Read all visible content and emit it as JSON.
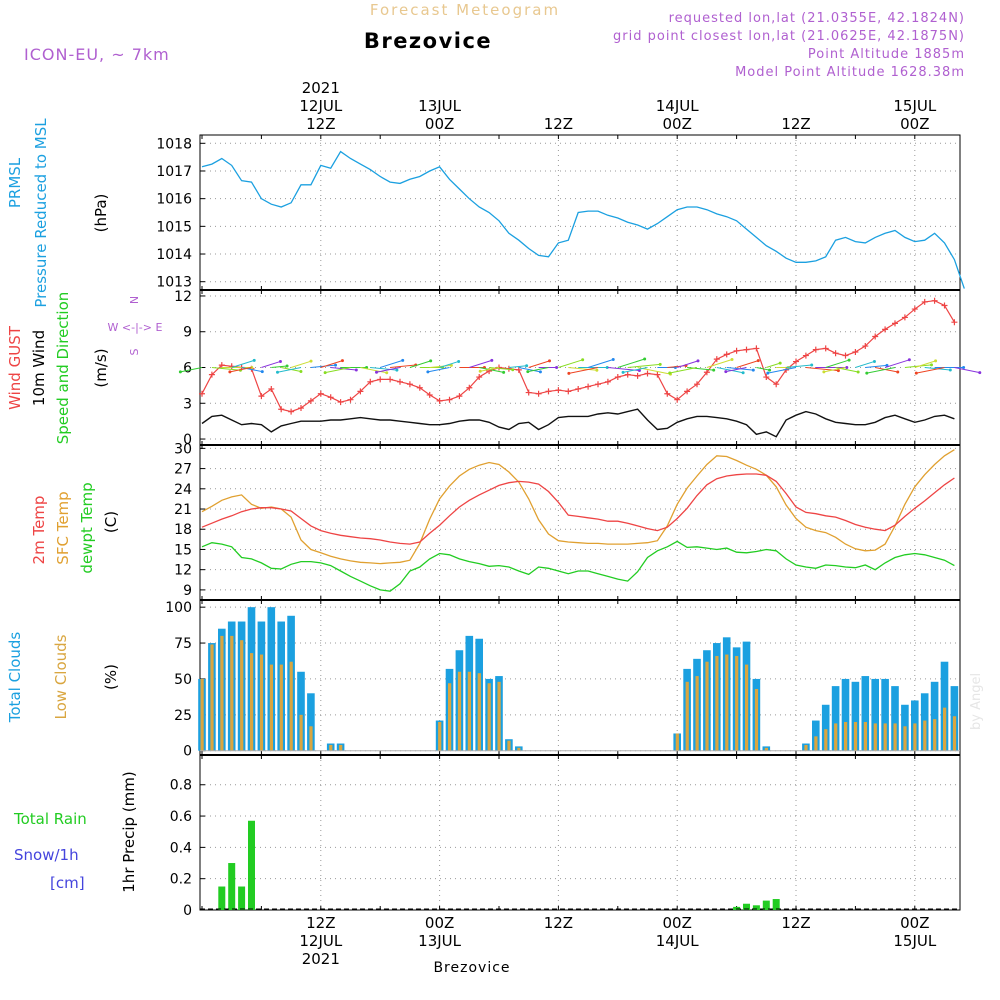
{
  "header": {
    "title_top": "Forecast Meteogram",
    "location": "Brezovice",
    "model": "ICON-EU, ~ 7km",
    "requested": "requested lon,lat (21.0355E, 42.1824N)",
    "gridpoint": "grid point closest lon,lat (21.0625E, 42.1875N)",
    "point_alt": "Point Altitude 1885m",
    "model_alt": "Model Point Altitude 1628.38m",
    "footer": "Brezovice",
    "watermark": "by Angel"
  },
  "colors": {
    "pressure": "#1ba0e0",
    "gust": "#ee4444",
    "wind": "#111111",
    "t2m": "#ee4444",
    "sfc": "#e0a030",
    "dew": "#22cc22",
    "total_clouds": "#1ba0e0",
    "low_clouds": "#d9a640",
    "rain": "#22cc22",
    "snow": "#4444dd",
    "meta": "#b060d0",
    "title_top": "#e8c890"
  },
  "time_axis": {
    "top_labels": [
      {
        "hour": 12,
        "lines": [
          "2021",
          "12JUL",
          "12Z"
        ]
      },
      {
        "hour": 24,
        "lines": [
          "13JUL",
          "00Z"
        ]
      },
      {
        "hour": 36,
        "lines": [
          "12Z"
        ]
      },
      {
        "hour": 48,
        "lines": [
          "14JUL",
          "00Z"
        ]
      },
      {
        "hour": 60,
        "lines": [
          "12Z"
        ]
      },
      {
        "hour": 72,
        "lines": [
          "15JUL",
          "00Z"
        ]
      }
    ],
    "bottom_labels": [
      {
        "hour": 12,
        "lines": [
          "12Z",
          "12JUL",
          "2021"
        ]
      },
      {
        "hour": 24,
        "lines": [
          "00Z",
          "13JUL"
        ]
      },
      {
        "hour": 36,
        "lines": [
          "12Z"
        ]
      },
      {
        "hour": 48,
        "lines": [
          "00Z",
          "14JUL"
        ]
      },
      {
        "hour": 60,
        "lines": [
          "12Z"
        ]
      },
      {
        "hour": 72,
        "lines": [
          "00Z",
          "15JUL"
        ]
      }
    ]
  },
  "chart_data": [
    {
      "type": "line",
      "panel": "pressure",
      "ylabel_lines": [
        "PRMSL",
        "Pressure Reduced to MSL"
      ],
      "unit": "(hPa)",
      "ylim": [
        1012.7,
        1018.3
      ],
      "yticks": [
        1013,
        1014,
        1015,
        1016,
        1017,
        1018
      ],
      "x_hours": "0..77 step 1",
      "values": [
        1017.15,
        1017.25,
        1017.45,
        1017.2,
        1016.65,
        1016.6,
        1016.0,
        1015.8,
        1015.7,
        1015.85,
        1016.5,
        1016.5,
        1017.2,
        1017.1,
        1017.7,
        1017.45,
        1017.25,
        1017.05,
        1016.8,
        1016.6,
        1016.55,
        1016.7,
        1016.8,
        1017.0,
        1017.15,
        1016.7,
        1016.35,
        1016.0,
        1015.7,
        1015.5,
        1015.2,
        1014.75,
        1014.5,
        1014.2,
        1013.95,
        1013.9,
        1014.4,
        1014.5,
        1015.5,
        1015.55,
        1015.55,
        1015.4,
        1015.3,
        1015.15,
        1015.05,
        1014.9,
        1015.1,
        1015.35,
        1015.6,
        1015.7,
        1015.7,
        1015.6,
        1015.45,
        1015.35,
        1015.2,
        1014.9,
        1014.6,
        1014.3,
        1014.1,
        1013.85,
        1013.7,
        1013.7,
        1013.75,
        1013.9,
        1014.5,
        1014.6,
        1014.45,
        1014.4,
        1014.6,
        1014.75,
        1014.85,
        1014.6,
        1014.45,
        1014.5,
        1014.75,
        1014.4,
        1013.8,
        1012.75
      ]
    },
    {
      "type": "line",
      "panel": "wind",
      "ylabel_gust": "Wind GUST",
      "ylabel_wind": "10m Wind",
      "ylabel_dir": "Speed and Direction",
      "unit": "(m/s)",
      "compass": [
        "N",
        "W <-|-> E",
        "S"
      ],
      "ylim": [
        -0.5,
        12.5
      ],
      "yticks": [
        0,
        3,
        6,
        9,
        12
      ],
      "gust": [
        3.8,
        5.4,
        6.2,
        6.1,
        6.0,
        5.9,
        3.6,
        4.2,
        2.5,
        2.3,
        2.6,
        3.2,
        3.8,
        3.5,
        3.1,
        3.3,
        4.0,
        4.8,
        5.0,
        5.0,
        4.8,
        4.6,
        4.3,
        3.7,
        3.2,
        3.3,
        3.6,
        4.3,
        5.2,
        5.7,
        6.0,
        5.9,
        5.8,
        3.9,
        3.8,
        4.0,
        4.1,
        4.0,
        4.2,
        4.4,
        4.6,
        4.8,
        5.2,
        5.4,
        5.3,
        5.5,
        5.4,
        3.8,
        3.3,
        4.0,
        4.6,
        5.6,
        6.7,
        7.1,
        7.4,
        7.5,
        7.6,
        5.2,
        4.6,
        5.8,
        6.5,
        7.0,
        7.5,
        7.6,
        7.2,
        7.0,
        7.3,
        7.8,
        8.6,
        9.2,
        9.7,
        10.2,
        10.9,
        11.5,
        11.6,
        11.2,
        9.8
      ],
      "wind": [
        1.3,
        1.9,
        2.0,
        1.6,
        1.2,
        1.3,
        1.2,
        0.6,
        1.1,
        1.3,
        1.5,
        1.5,
        1.5,
        1.6,
        1.6,
        1.7,
        1.8,
        1.7,
        1.6,
        1.6,
        1.5,
        1.4,
        1.3,
        1.2,
        1.2,
        1.3,
        1.5,
        1.6,
        1.6,
        1.4,
        1.0,
        0.8,
        1.3,
        1.4,
        0.8,
        1.2,
        1.8,
        1.9,
        1.9,
        1.9,
        2.1,
        2.2,
        2.1,
        2.3,
        2.5,
        1.6,
        0.8,
        0.9,
        1.4,
        1.7,
        1.9,
        1.9,
        1.8,
        1.7,
        1.5,
        1.2,
        0.4,
        0.6,
        0.2,
        1.6,
        2.0,
        2.3,
        2.1,
        1.7,
        1.4,
        1.3,
        1.2,
        1.2,
        1.4,
        1.8,
        2.0,
        1.7,
        1.4,
        1.6,
        1.9,
        2.0,
        1.7
      ],
      "direction_arrows": "west/east flow along 6 m/s band"
    },
    {
      "type": "line",
      "panel": "temperature",
      "ylabel_t2m": "2m Temp",
      "ylabel_sfc": "SFC Temp",
      "ylabel_dew": "dewpt Temp",
      "unit": "(C)",
      "ylim": [
        7.5,
        30.5
      ],
      "yticks": [
        9,
        12,
        15,
        18,
        21,
        24,
        27,
        30
      ],
      "t2m": [
        18.3,
        18.9,
        19.5,
        20.0,
        20.6,
        21.0,
        21.2,
        21.2,
        21.0,
        20.7,
        19.6,
        18.5,
        17.8,
        17.4,
        17.1,
        16.9,
        16.7,
        16.6,
        16.4,
        16.1,
        15.9,
        15.8,
        16.1,
        17.4,
        18.6,
        20.0,
        21.3,
        22.3,
        23.1,
        23.8,
        24.5,
        24.9,
        25.1,
        25.0,
        24.7,
        23.6,
        22.0,
        20.1,
        19.9,
        19.7,
        19.5,
        19.2,
        19.2,
        18.9,
        18.5,
        18.1,
        17.8,
        18.3,
        19.6,
        21.1,
        23.0,
        24.6,
        25.5,
        25.9,
        26.1,
        26.2,
        26.2,
        26.0,
        25.1,
        23.3,
        21.3,
        20.5,
        20.3,
        20.0,
        19.8,
        19.3,
        18.7,
        18.3,
        18.0,
        17.8,
        18.6,
        19.9,
        21.1,
        22.2,
        23.4,
        24.6,
        25.6
      ],
      "sfc": [
        20.6,
        21.4,
        22.3,
        22.8,
        23.1,
        21.7,
        21.1,
        21.3,
        21.0,
        19.8,
        16.4,
        15.0,
        14.5,
        14.0,
        13.6,
        13.3,
        13.1,
        13.0,
        12.9,
        13.0,
        13.1,
        13.4,
        15.9,
        19.5,
        22.5,
        24.4,
        25.9,
        26.9,
        27.5,
        27.9,
        27.6,
        26.5,
        25.0,
        22.5,
        19.4,
        17.3,
        16.3,
        16.1,
        16.0,
        15.9,
        15.9,
        15.8,
        15.8,
        15.8,
        15.9,
        16.0,
        16.3,
        18.5,
        21.7,
        24.1,
        25.9,
        27.6,
        28.9,
        28.8,
        28.2,
        27.5,
        26.9,
        26.0,
        24.3,
        21.6,
        19.6,
        18.3,
        17.8,
        17.5,
        16.8,
        15.8,
        15.1,
        14.8,
        14.9,
        15.8,
        18.5,
        21.7,
        24.3,
        26.1,
        27.6,
        28.9,
        29.8
      ],
      "dew": [
        15.4,
        16.0,
        15.8,
        15.4,
        13.8,
        13.6,
        13.0,
        12.2,
        12.1,
        12.8,
        13.2,
        13.2,
        13.0,
        12.6,
        11.8,
        11.0,
        10.3,
        9.6,
        9.0,
        8.8,
        9.9,
        11.8,
        12.4,
        13.6,
        14.4,
        14.2,
        13.6,
        13.2,
        12.9,
        12.5,
        12.6,
        12.4,
        11.8,
        11.3,
        12.4,
        12.2,
        11.8,
        11.4,
        11.8,
        11.8,
        11.4,
        11.0,
        10.6,
        10.3,
        11.7,
        13.8,
        14.8,
        15.4,
        16.2,
        15.3,
        15.4,
        15.2,
        15.0,
        15.2,
        14.6,
        14.5,
        14.7,
        15.0,
        14.8,
        13.6,
        12.7,
        12.4,
        12.2,
        12.7,
        12.6,
        12.4,
        12.3,
        12.7,
        12.0,
        13.0,
        13.8,
        14.2,
        14.4,
        14.2,
        13.8,
        13.4,
        12.6
      ]
    },
    {
      "type": "bar",
      "panel": "clouds",
      "ylabel_total": "Total Clouds",
      "ylabel_low": "Low Clouds",
      "unit": "(%)",
      "ylim": [
        -3,
        105
      ],
      "yticks": [
        0,
        25,
        50,
        75,
        100
      ],
      "total": [
        50,
        75,
        85,
        90,
        90,
        100,
        90,
        100,
        90,
        94,
        55,
        40,
        0,
        5,
        5,
        0,
        0,
        0,
        0,
        0,
        0,
        0,
        0,
        0,
        21,
        57,
        70,
        80,
        78,
        50,
        52,
        8,
        3,
        0,
        0,
        0,
        0,
        0,
        0,
        0,
        0,
        0,
        0,
        0,
        0,
        0,
        0,
        0,
        12,
        57,
        64,
        70,
        75,
        79,
        72,
        76,
        50,
        3,
        0,
        0,
        0,
        5,
        21,
        32,
        45,
        50,
        48,
        52,
        50,
        50,
        45,
        32,
        35,
        40,
        48,
        62,
        45
      ],
      "low": [
        50,
        74,
        80,
        80,
        77,
        68,
        67,
        60,
        60,
        62,
        25,
        17,
        0,
        4,
        4,
        0,
        0,
        0,
        0,
        0,
        0,
        0,
        0,
        0,
        20,
        47,
        55,
        55,
        54,
        47,
        48,
        7,
        2,
        0,
        0,
        0,
        0,
        0,
        0,
        0,
        0,
        0,
        0,
        0,
        0,
        0,
        0,
        0,
        12,
        48,
        52,
        62,
        66,
        67,
        66,
        60,
        43,
        2,
        0,
        0,
        0,
        4,
        10,
        15,
        19,
        20,
        20,
        20,
        19,
        19,
        19,
        17,
        19,
        21,
        22,
        30,
        24
      ]
    },
    {
      "type": "bar",
      "panel": "precip",
      "ylabel_rain": "Total  Rain",
      "ylabel_snow": "Snow/1h",
      "ylabel_cm": "[cm]",
      "unit": "1hr Precip (mm)",
      "ylim": [
        0,
        0.99
      ],
      "yticks": [
        0,
        0.2,
        0.4,
        0.6,
        0.8
      ],
      "ytick_labels": [
        "0",
        "0.2",
        "0.4",
        "0.6",
        "0.8"
      ],
      "rain": [
        0,
        0,
        0.15,
        0.3,
        0.15,
        0.57,
        0,
        0,
        0,
        0,
        0,
        0,
        0,
        0,
        0,
        0,
        0,
        0,
        0,
        0,
        0,
        0,
        0,
        0,
        0,
        0,
        0,
        0,
        0,
        0,
        0,
        0,
        0,
        0,
        0,
        0,
        0,
        0,
        0,
        0,
        0,
        0,
        0,
        0,
        0,
        0,
        0,
        0,
        0,
        0,
        0,
        0,
        0,
        0,
        0.02,
        0.04,
        0.03,
        0.06,
        0.07,
        0,
        0,
        0,
        0,
        0,
        0,
        0,
        0,
        0,
        0,
        0,
        0,
        0,
        0,
        0,
        0,
        0,
        0
      ]
    }
  ]
}
